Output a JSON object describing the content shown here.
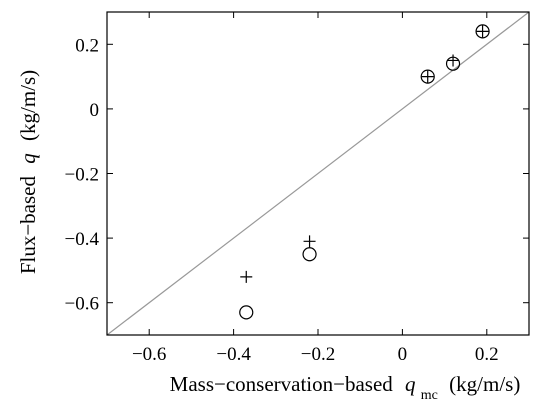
{
  "chart_data": {
    "type": "scatter",
    "xlabel": {
      "prefix": "Mass−conservation−based",
      "var": "q",
      "sub": "mc",
      "unit": "(kg/m/s)"
    },
    "ylabel": {
      "prefix": "Flux−based",
      "var": "q",
      "unit": "(kg/m/s)"
    },
    "xlim": [
      -0.7,
      0.3
    ],
    "ylim": [
      -0.7,
      0.3
    ],
    "xticks": [
      -0.6,
      -0.4,
      -0.2,
      0,
      0.2
    ],
    "xtick_labels": [
      "−0.6",
      "−0.4",
      "−0.2",
      "0",
      "0.2"
    ],
    "yticks": [
      -0.6,
      -0.4,
      -0.2,
      0,
      0.2
    ],
    "ytick_labels": [
      "−0.6",
      "−0.4",
      "−0.2",
      "0",
      "0.2"
    ],
    "grid": false,
    "reference_line": {
      "style": "1:1",
      "color": "#999999"
    },
    "series": [
      {
        "marker": "circle",
        "points": [
          {
            "x": -0.37,
            "y": -0.63
          },
          {
            "x": -0.22,
            "y": -0.45
          },
          {
            "x": 0.06,
            "y": 0.1
          },
          {
            "x": 0.12,
            "y": 0.14
          },
          {
            "x": 0.19,
            "y": 0.24
          }
        ]
      },
      {
        "marker": "plus",
        "points": [
          {
            "x": -0.37,
            "y": -0.52
          },
          {
            "x": -0.22,
            "y": -0.41
          },
          {
            "x": 0.06,
            "y": 0.1
          },
          {
            "x": 0.12,
            "y": 0.15
          },
          {
            "x": 0.19,
            "y": 0.24
          }
        ]
      }
    ]
  }
}
